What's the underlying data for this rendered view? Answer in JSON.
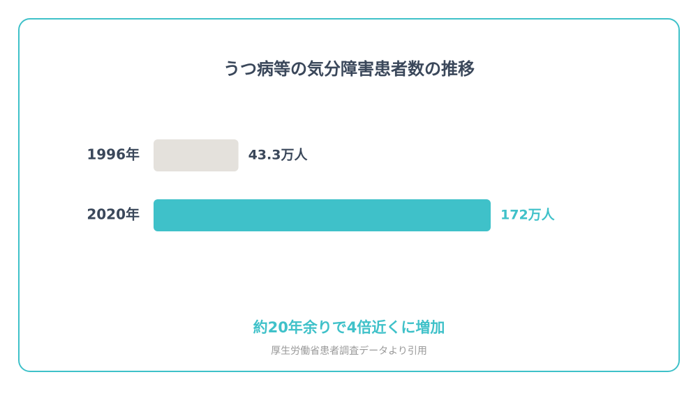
{
  "chart_data": {
    "type": "bar",
    "orientation": "horizontal",
    "title": "うつ病等の気分障害患者数の推移",
    "categories": [
      "1996年",
      "2020年"
    ],
    "values": [
      43.3,
      172
    ],
    "value_labels": [
      "43.3万人",
      "172万人"
    ],
    "colors": [
      "#e4e1dc",
      "#3fc1c9"
    ],
    "label_colors": [
      "#3a475a",
      "#3fc1c9"
    ],
    "annotation": "約20年余りで4倍近くに増加",
    "source": "厚生労働省患者調査データより引用"
  }
}
